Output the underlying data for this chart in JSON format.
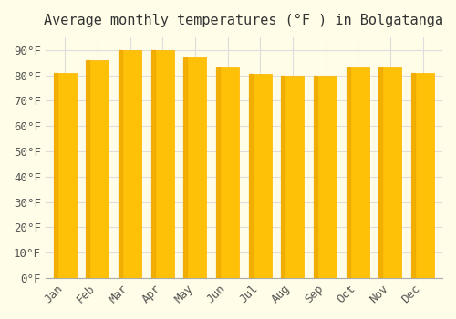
{
  "title": "Average monthly temperatures (°F ) in Bolgatanga",
  "months": [
    "Jan",
    "Feb",
    "Mar",
    "Apr",
    "May",
    "Jun",
    "Jul",
    "Aug",
    "Sep",
    "Oct",
    "Nov",
    "Dec"
  ],
  "values": [
    81,
    86,
    90,
    90,
    87,
    83,
    80.5,
    80,
    80,
    83,
    83,
    81
  ],
  "bar_color_top": "#FFC107",
  "bar_color_bottom": "#FFB300",
  "background_color": "#FFFDE7",
  "grid_color": "#DDDDDD",
  "ylim": [
    0,
    95
  ],
  "yticks": [
    0,
    10,
    20,
    30,
    40,
    50,
    60,
    70,
    80,
    90
  ],
  "ytick_labels": [
    "0°F",
    "10°F",
    "20°F",
    "30°F",
    "40°F",
    "50°F",
    "60°F",
    "70°F",
    "80°F",
    "90°F"
  ],
  "title_fontsize": 11,
  "tick_fontsize": 9,
  "bar_edge_color": "#E65100"
}
